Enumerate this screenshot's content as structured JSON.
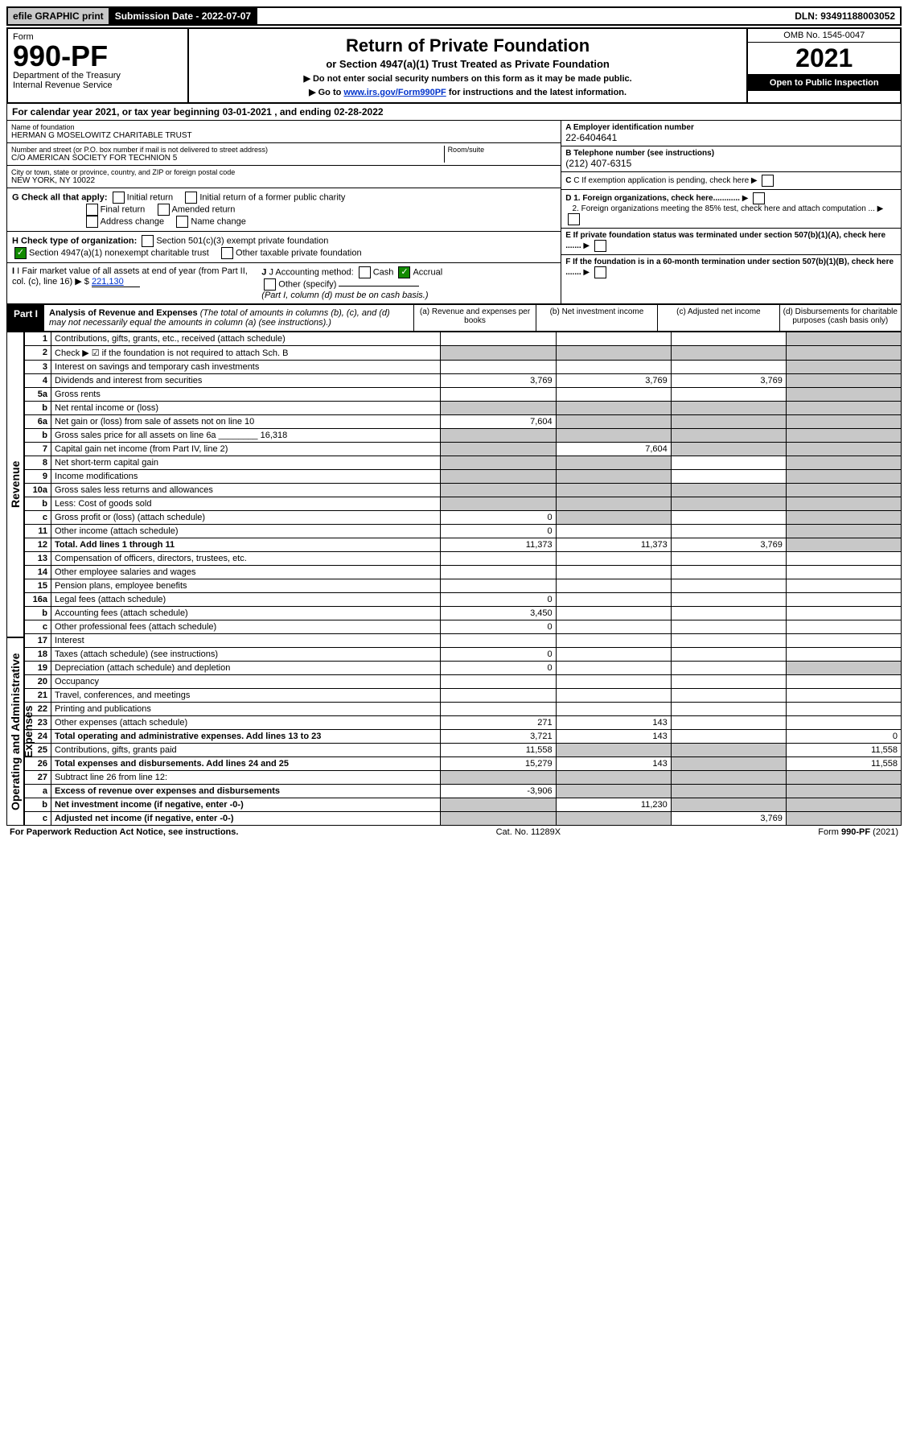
{
  "topbar": {
    "efile": "efile GRAPHIC print",
    "submission_label": "Submission Date - 2022-07-07",
    "dln": "DLN: 93491188003052"
  },
  "header": {
    "form_word": "Form",
    "form_number": "990-PF",
    "dept": "Department of the Treasury",
    "irs": "Internal Revenue Service",
    "title": "Return of Private Foundation",
    "subtitle": "or Section 4947(a)(1) Trust Treated as Private Foundation",
    "inst1": "▶ Do not enter social security numbers on this form as it may be made public.",
    "inst2_pre": "▶ Go to ",
    "inst2_link": "www.irs.gov/Form990PF",
    "inst2_post": " for instructions and the latest information.",
    "omb": "OMB No. 1545-0047",
    "year": "2021",
    "open": "Open to Public Inspection"
  },
  "cal": {
    "line_pre": "For calendar year 2021, or tax year beginning ",
    "begin": "03-01-2021",
    "mid": " , and ending ",
    "end": "02-28-2022"
  },
  "ident": {
    "name_label": "Name of foundation",
    "name": "HERMAN G MOSELOWITZ CHARITABLE TRUST",
    "addr_label": "Number and street (or P.O. box number if mail is not delivered to street address)",
    "addr": "C/O AMERICAN SOCIETY FOR TECHNION 5",
    "room_label": "Room/suite",
    "city_label": "City or town, state or province, country, and ZIP or foreign postal code",
    "city": "NEW YORK, NY  10022",
    "a_label": "A Employer identification number",
    "a_val": "22-6404641",
    "b_label": "B Telephone number (see instructions)",
    "b_val": "(212) 407-6315",
    "c_label": "C If exemption application is pending, check here",
    "d1": "D 1. Foreign organizations, check here............",
    "d2": "2. Foreign organizations meeting the 85% test, check here and attach computation ...",
    "e": "E  If private foundation status was terminated under section 507(b)(1)(A), check here .......",
    "f": "F  If the foundation is in a 60-month termination under section 507(b)(1)(B), check here .......",
    "g_label": "G Check all that apply:",
    "g_opts": [
      "Initial return",
      "Final return",
      "Address change",
      "Initial return of a former public charity",
      "Amended return",
      "Name change"
    ],
    "h_label": "H Check type of organization:",
    "h_opt1": "Section 501(c)(3) exempt private foundation",
    "h_opt2": "Section 4947(a)(1) nonexempt charitable trust",
    "h_opt3": "Other taxable private foundation",
    "i_label": "I Fair market value of all assets at end of year (from Part II, col. (c), line 16)",
    "i_val": "221,130",
    "j_label": "J Accounting method:",
    "j_cash": "Cash",
    "j_accrual": "Accrual",
    "j_other": "Other (specify)",
    "j_note": "(Part I, column (d) must be on cash basis.)"
  },
  "part1": {
    "label": "Part I",
    "title": "Analysis of Revenue and Expenses",
    "note": "(The total of amounts in columns (b), (c), and (d) may not necessarily equal the amounts in column (a) (see instructions).)",
    "cols": {
      "a": "(a)  Revenue and expenses per books",
      "b": "(b)  Net investment income",
      "c": "(c)  Adjusted net income",
      "d": "(d)  Disbursements for charitable purposes (cash basis only)"
    }
  },
  "sides": {
    "rev": "Revenue",
    "exp": "Operating and Administrative Expenses"
  },
  "rows": [
    {
      "n": "1",
      "lbl": "Contributions, gifts, grants, etc., received (attach schedule)",
      "a": "",
      "b": "",
      "c": "",
      "d": "",
      "ds": true
    },
    {
      "n": "2",
      "lbl": "Check ▶ ☑ if the foundation is not required to attach Sch. B",
      "a": "",
      "b": "",
      "c": "",
      "d": "",
      "ds": true,
      "allshade": true
    },
    {
      "n": "3",
      "lbl": "Interest on savings and temporary cash investments",
      "a": "",
      "b": "",
      "c": "",
      "d": "",
      "ds": true
    },
    {
      "n": "4",
      "lbl": "Dividends and interest from securities",
      "a": "3,769",
      "b": "3,769",
      "c": "3,769",
      "d": "",
      "ds": true
    },
    {
      "n": "5a",
      "lbl": "Gross rents",
      "a": "",
      "b": "",
      "c": "",
      "d": "",
      "ds": true
    },
    {
      "n": "b",
      "lbl": "Net rental income or (loss)",
      "a": "",
      "b": "",
      "c": "",
      "d": "",
      "allshade": true
    },
    {
      "n": "6a",
      "lbl": "Net gain or (loss) from sale of assets not on line 10",
      "a": "7,604",
      "b": "",
      "c": "",
      "d": "",
      "bshade": true,
      "cshade": true,
      "ds": true
    },
    {
      "n": "b",
      "lbl": "Gross sales price for all assets on line 6a ________ 16,318",
      "a": "",
      "b": "",
      "c": "",
      "d": "",
      "allshade": true
    },
    {
      "n": "7",
      "lbl": "Capital gain net income (from Part IV, line 2)",
      "a": "",
      "b": "7,604",
      "c": "",
      "d": "",
      "ashade": true,
      "cshade": true,
      "ds": true
    },
    {
      "n": "8",
      "lbl": "Net short-term capital gain",
      "a": "",
      "b": "",
      "c": "",
      "d": "",
      "ashade": true,
      "bshade": true,
      "ds": true
    },
    {
      "n": "9",
      "lbl": "Income modifications",
      "a": "",
      "b": "",
      "c": "",
      "d": "",
      "ashade": true,
      "bshade": true,
      "ds": true
    },
    {
      "n": "10a",
      "lbl": "Gross sales less returns and allowances",
      "a": "",
      "b": "",
      "c": "",
      "d": "",
      "allshade": true
    },
    {
      "n": "b",
      "lbl": "Less: Cost of goods sold",
      "a": "",
      "b": "",
      "c": "",
      "d": "",
      "allshade": true
    },
    {
      "n": "c",
      "lbl": "Gross profit or (loss) (attach schedule)",
      "a": "0",
      "b": "",
      "c": "",
      "d": "",
      "bshade": true,
      "ds": true
    },
    {
      "n": "11",
      "lbl": "Other income (attach schedule)",
      "a": "0",
      "b": "",
      "c": "",
      "d": "",
      "ds": true
    },
    {
      "n": "12",
      "lbl": "Total. Add lines 1 through 11",
      "a": "11,373",
      "b": "11,373",
      "c": "3,769",
      "d": "",
      "ds": true,
      "bold": true
    },
    {
      "n": "13",
      "lbl": "Compensation of officers, directors, trustees, etc.",
      "a": "",
      "b": "",
      "c": "",
      "d": ""
    },
    {
      "n": "14",
      "lbl": "Other employee salaries and wages",
      "a": "",
      "b": "",
      "c": "",
      "d": ""
    },
    {
      "n": "15",
      "lbl": "Pension plans, employee benefits",
      "a": "",
      "b": "",
      "c": "",
      "d": ""
    },
    {
      "n": "16a",
      "lbl": "Legal fees (attach schedule)",
      "a": "0",
      "b": "",
      "c": "",
      "d": ""
    },
    {
      "n": "b",
      "lbl": "Accounting fees (attach schedule)",
      "a": "3,450",
      "b": "",
      "c": "",
      "d": ""
    },
    {
      "n": "c",
      "lbl": "Other professional fees (attach schedule)",
      "a": "0",
      "b": "",
      "c": "",
      "d": ""
    },
    {
      "n": "17",
      "lbl": "Interest",
      "a": "",
      "b": "",
      "c": "",
      "d": ""
    },
    {
      "n": "18",
      "lbl": "Taxes (attach schedule) (see instructions)",
      "a": "0",
      "b": "",
      "c": "",
      "d": ""
    },
    {
      "n": "19",
      "lbl": "Depreciation (attach schedule) and depletion",
      "a": "0",
      "b": "",
      "c": "",
      "d": "",
      "ds": true
    },
    {
      "n": "20",
      "lbl": "Occupancy",
      "a": "",
      "b": "",
      "c": "",
      "d": ""
    },
    {
      "n": "21",
      "lbl": "Travel, conferences, and meetings",
      "a": "",
      "b": "",
      "c": "",
      "d": ""
    },
    {
      "n": "22",
      "lbl": "Printing and publications",
      "a": "",
      "b": "",
      "c": "",
      "d": ""
    },
    {
      "n": "23",
      "lbl": "Other expenses (attach schedule)",
      "a": "271",
      "b": "143",
      "c": "",
      "d": ""
    },
    {
      "n": "24",
      "lbl": "Total operating and administrative expenses. Add lines 13 to 23",
      "a": "3,721",
      "b": "143",
      "c": "",
      "d": "0",
      "bold": true
    },
    {
      "n": "25",
      "lbl": "Contributions, gifts, grants paid",
      "a": "11,558",
      "b": "",
      "c": "",
      "d": "11,558",
      "bshade": true,
      "cshade": true
    },
    {
      "n": "26",
      "lbl": "Total expenses and disbursements. Add lines 24 and 25",
      "a": "15,279",
      "b": "143",
      "c": "",
      "d": "11,558",
      "bold": true,
      "cshade": true
    },
    {
      "n": "27",
      "lbl": "Subtract line 26 from line 12:",
      "a": "",
      "b": "",
      "c": "",
      "d": "",
      "allshade": true
    },
    {
      "n": "a",
      "lbl": "Excess of revenue over expenses and disbursements",
      "a": "-3,906",
      "b": "",
      "c": "",
      "d": "",
      "bshade": true,
      "cshade": true,
      "ds": true,
      "bold": true
    },
    {
      "n": "b",
      "lbl": "Net investment income (if negative, enter -0-)",
      "a": "",
      "b": "11,230",
      "c": "",
      "d": "",
      "ashade": true,
      "cshade": true,
      "ds": true,
      "bold": true
    },
    {
      "n": "c",
      "lbl": "Adjusted net income (if negative, enter -0-)",
      "a": "",
      "b": "",
      "c": "3,769",
      "d": "",
      "ashade": true,
      "bshade": true,
      "ds": true,
      "bold": true
    }
  ],
  "footer": {
    "left": "For Paperwork Reduction Act Notice, see instructions.",
    "mid": "Cat. No. 11289X",
    "right": "Form 990-PF (2021)"
  }
}
